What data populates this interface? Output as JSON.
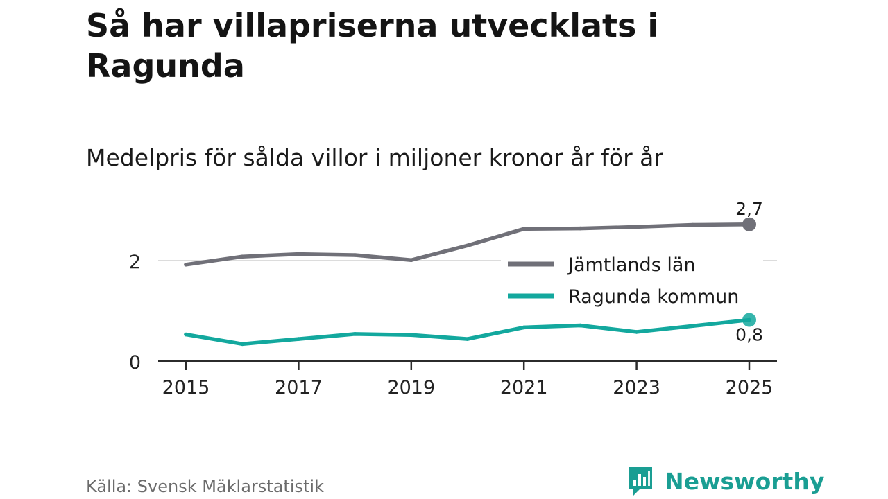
{
  "title": "Så har villapriserna utvecklats i Ragunda",
  "chart_data": {
    "type": "line",
    "title": "Så har villapriserna utvecklats i Ragunda",
    "subtitle": "Medelpris för sålda villor i miljoner kronor år för år",
    "x": [
      2015,
      2016,
      2017,
      2018,
      2019,
      2020,
      2021,
      2022,
      2023,
      2024,
      2025
    ],
    "x_tick_labels": [
      "2015",
      "2017",
      "2019",
      "2021",
      "2023",
      "2025"
    ],
    "x_tick_values": [
      2015,
      2017,
      2019,
      2021,
      2023,
      2025
    ],
    "y_tick_labels": [
      "0",
      "2"
    ],
    "y_tick_values": [
      0,
      2
    ],
    "ylim": [
      0,
      3
    ],
    "series": [
      {
        "name": "Jämtlands län",
        "color": "#707078",
        "values": [
          1.92,
          2.08,
          2.13,
          2.11,
          2.01,
          2.3,
          2.63,
          2.64,
          2.67,
          2.71,
          2.72
        ],
        "end_label": "2,7"
      },
      {
        "name": "Ragunda kommun",
        "color": "#13a89e",
        "values": [
          0.53,
          0.34,
          0.44,
          0.54,
          0.52,
          0.44,
          0.67,
          0.71,
          0.58,
          0.7,
          0.82
        ],
        "end_label": "0,8"
      }
    ],
    "legend_position": "right"
  },
  "source": "Källa: Svensk Mäklarstatistik",
  "brand": {
    "name": "Newsworthy",
    "color": "#1a9e93"
  }
}
